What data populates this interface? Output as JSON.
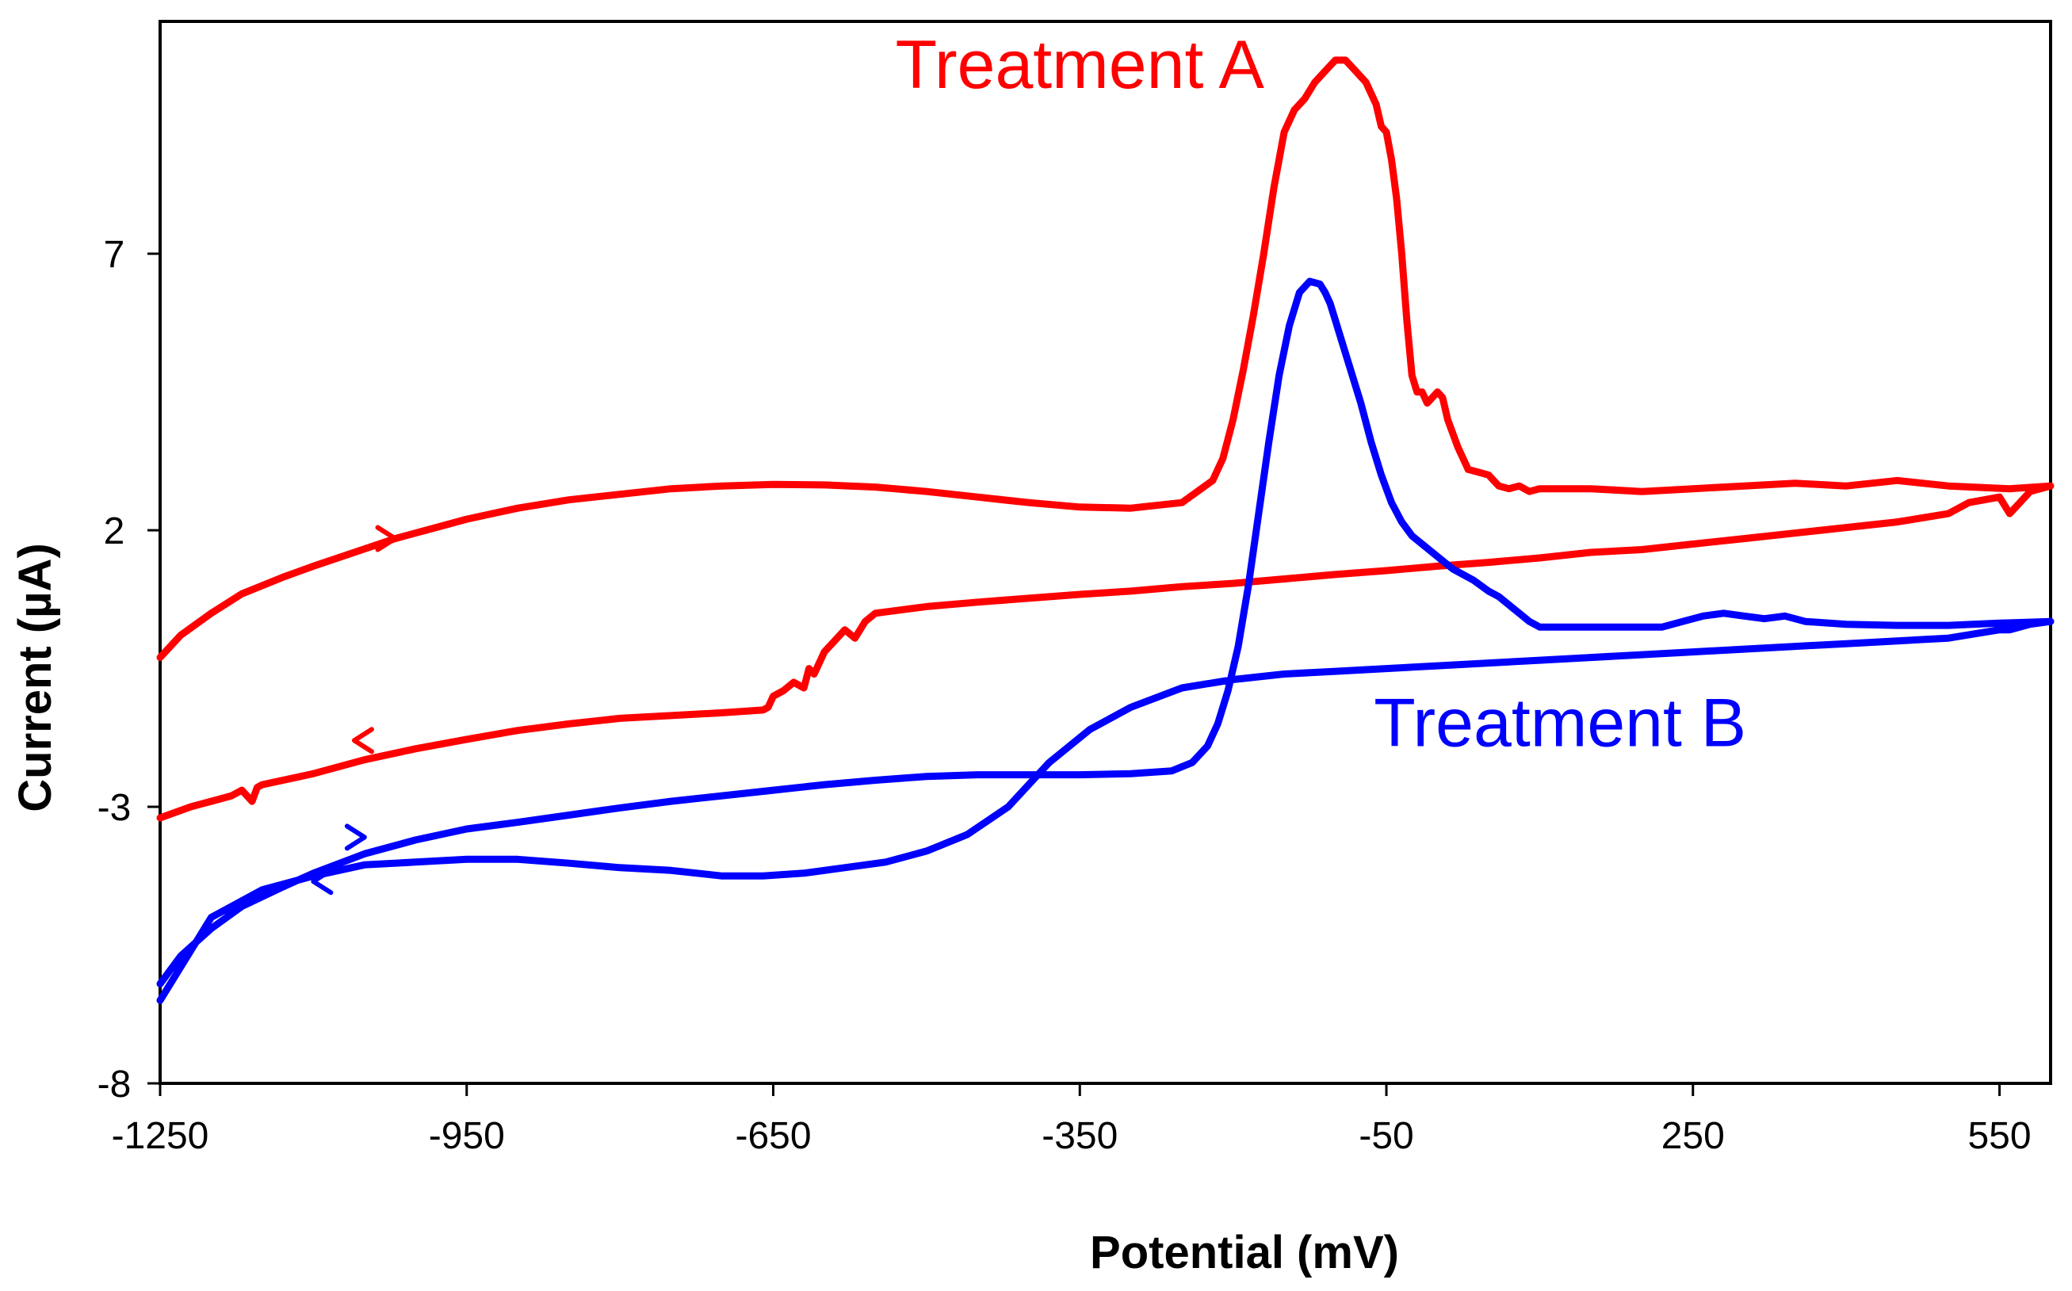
{
  "chart_data": {
    "type": "line",
    "title": "",
    "xlabel": "Potential (mV)",
    "ylabel": "Current (µA)",
    "xlim": [
      -1250,
      600
    ],
    "ylim": [
      -8,
      11.2
    ],
    "x_ticks": [
      -1250,
      -950,
      -650,
      -350,
      -50,
      250,
      550
    ],
    "x_tick_labels": [
      "-1250",
      "-950",
      "-650",
      "-350",
      "-50",
      "250",
      "550"
    ],
    "y_ticks": [
      -8,
      -3,
      2,
      7
    ],
    "y_tick_labels": [
      "-8",
      "-3",
      "2",
      "7"
    ],
    "grid": false,
    "legend": "none",
    "series": [
      {
        "name": "Treatment A",
        "color": "#ff0000",
        "label_position": {
          "x": -350,
          "y": 10.0
        },
        "arrows": [
          {
            "x": -1020,
            "y": 1.85,
            "direction": "right"
          },
          {
            "x": -1060,
            "y": -1.8,
            "direction": "left"
          }
        ],
        "x": [
          -1250,
          -1230,
          -1200,
          -1170,
          -1130,
          -1100,
          -1060,
          -1020,
          -980,
          -950,
          -900,
          -850,
          -800,
          -750,
          -700,
          -650,
          -600,
          -550,
          -500,
          -450,
          -400,
          -350,
          -300,
          -250,
          -220,
          -210,
          -200,
          -190,
          -180,
          -170,
          -160,
          -150,
          -140,
          -130,
          -120,
          -110,
          -100,
          -90,
          -80,
          -70,
          -60,
          -55,
          -50,
          -45,
          -40,
          -35,
          -30,
          -25,
          -20,
          -15,
          -10,
          -5,
          0,
          5,
          10,
          20,
          30,
          40,
          50,
          55,
          60,
          70,
          80,
          90,
          100,
          150,
          200,
          250,
          300,
          350,
          400,
          450,
          500,
          560,
          600,
          580,
          560,
          550,
          520,
          500,
          450,
          400,
          350,
          300,
          250,
          200,
          150,
          100,
          50,
          0,
          -50,
          -100,
          -150,
          -200,
          -250,
          -300,
          -350,
          -400,
          -450,
          -500,
          -550,
          -560,
          -570,
          -580,
          -590,
          -600,
          -610,
          -615,
          -620,
          -630,
          -640,
          -650,
          -655,
          -660,
          -700,
          -750,
          -800,
          -850,
          -900,
          -950,
          -1000,
          -1050,
          -1100,
          -1150,
          -1155,
          -1160,
          -1170,
          -1180,
          -1200,
          -1220,
          -1250
        ],
        "y": [
          -0.3,
          0.1,
          0.5,
          0.85,
          1.15,
          1.35,
          1.6,
          1.85,
          2.05,
          2.2,
          2.4,
          2.55,
          2.65,
          2.75,
          2.8,
          2.83,
          2.82,
          2.78,
          2.7,
          2.6,
          2.5,
          2.42,
          2.4,
          2.5,
          2.9,
          3.3,
          4.0,
          4.9,
          5.9,
          7.0,
          8.2,
          9.2,
          9.6,
          9.8,
          10.1,
          10.3,
          10.5,
          10.5,
          10.3,
          10.1,
          9.7,
          9.3,
          9.2,
          8.7,
          8.0,
          7.0,
          5.8,
          4.8,
          4.5,
          4.5,
          4.3,
          4.4,
          4.5,
          4.4,
          4.0,
          3.5,
          3.1,
          3.05,
          3.0,
          2.9,
          2.8,
          2.75,
          2.8,
          2.7,
          2.75,
          2.75,
          2.7,
          2.75,
          2.8,
          2.85,
          2.8,
          2.9,
          2.8,
          2.75,
          2.8,
          2.7,
          2.3,
          2.6,
          2.5,
          2.3,
          2.15,
          2.05,
          1.95,
          1.85,
          1.75,
          1.65,
          1.6,
          1.5,
          1.42,
          1.35,
          1.27,
          1.2,
          1.12,
          1.04,
          0.98,
          0.9,
          0.84,
          0.77,
          0.7,
          0.62,
          0.5,
          0.35,
          0.05,
          0.2,
          0.0,
          -0.2,
          -0.6,
          -0.5,
          -0.85,
          -0.75,
          -0.9,
          -1.0,
          -1.2,
          -1.25,
          -1.3,
          -1.35,
          -1.4,
          -1.5,
          -1.62,
          -1.78,
          -1.95,
          -2.15,
          -2.4,
          -2.6,
          -2.65,
          -2.9,
          -2.7,
          -2.8,
          -2.9,
          -3.0,
          -3.2
        ]
      },
      {
        "name": "Treatment B",
        "color": "#0000ff",
        "label_position": {
          "x": 120,
          "y": -1.9
        },
        "arrows": [
          {
            "x": -1050,
            "y": -3.55,
            "direction": "right"
          },
          {
            "x": -1100,
            "y": -4.35,
            "direction": "left"
          }
        ],
        "x": [
          -1250,
          -1230,
          -1200,
          -1170,
          -1130,
          -1100,
          -1050,
          -1000,
          -950,
          -900,
          -850,
          -800,
          -750,
          -700,
          -650,
          -600,
          -550,
          -500,
          -450,
          -400,
          -350,
          -300,
          -260,
          -240,
          -225,
          -215,
          -205,
          -195,
          -185,
          -175,
          -165,
          -155,
          -145,
          -135,
          -125,
          -115,
          -110,
          -105,
          -100,
          -95,
          -85,
          -75,
          -65,
          -55,
          -45,
          -35,
          -25,
          -15,
          -5,
          5,
          15,
          25,
          35,
          50,
          60,
          70,
          80,
          90,
          100,
          150,
          200,
          220,
          240,
          260,
          280,
          300,
          320,
          340,
          360,
          400,
          450,
          500,
          550,
          600,
          580,
          560,
          550,
          500,
          450,
          400,
          350,
          300,
          250,
          200,
          150,
          100,
          50,
          0,
          -50,
          -100,
          -150,
          -200,
          -250,
          -300,
          -340,
          -380,
          -420,
          -460,
          -500,
          -540,
          -580,
          -620,
          -660,
          -700,
          -750,
          -800,
          -850,
          -900,
          -950,
          -1000,
          -1050,
          -1100,
          -1150,
          -1200,
          -1250
        ],
        "y": [
          -6.2,
          -5.7,
          -5.2,
          -4.8,
          -4.45,
          -4.2,
          -3.85,
          -3.6,
          -3.4,
          -3.28,
          -3.15,
          -3.02,
          -2.9,
          -2.8,
          -2.7,
          -2.6,
          -2.52,
          -2.45,
          -2.42,
          -2.42,
          -2.42,
          -2.4,
          -2.35,
          -2.2,
          -1.9,
          -1.5,
          -0.9,
          -0.1,
          1.0,
          2.3,
          3.6,
          4.8,
          5.7,
          6.3,
          6.5,
          6.45,
          6.3,
          6.1,
          5.8,
          5.5,
          4.9,
          4.3,
          3.6,
          3.0,
          2.5,
          2.15,
          1.9,
          1.75,
          1.6,
          1.45,
          1.3,
          1.2,
          1.1,
          0.9,
          0.8,
          0.65,
          0.5,
          0.35,
          0.25,
          0.25,
          0.25,
          0.25,
          0.35,
          0.45,
          0.5,
          0.45,
          0.4,
          0.45,
          0.35,
          0.3,
          0.28,
          0.28,
          0.32,
          0.35,
          0.3,
          0.2,
          0.2,
          0.05,
          0.0,
          -0.05,
          -0.1,
          -0.15,
          -0.2,
          -0.25,
          -0.3,
          -0.35,
          -0.4,
          -0.45,
          -0.5,
          -0.55,
          -0.6,
          -0.7,
          -0.85,
          -1.2,
          -1.6,
          -2.2,
          -3.0,
          -3.5,
          -3.8,
          -4.0,
          -4.1,
          -4.2,
          -4.25,
          -4.25,
          -4.15,
          -4.1,
          -4.02,
          -3.95,
          -3.95,
          -4.0,
          -4.05,
          -4.25,
          -4.5,
          -5.0,
          -6.5
        ]
      }
    ]
  }
}
